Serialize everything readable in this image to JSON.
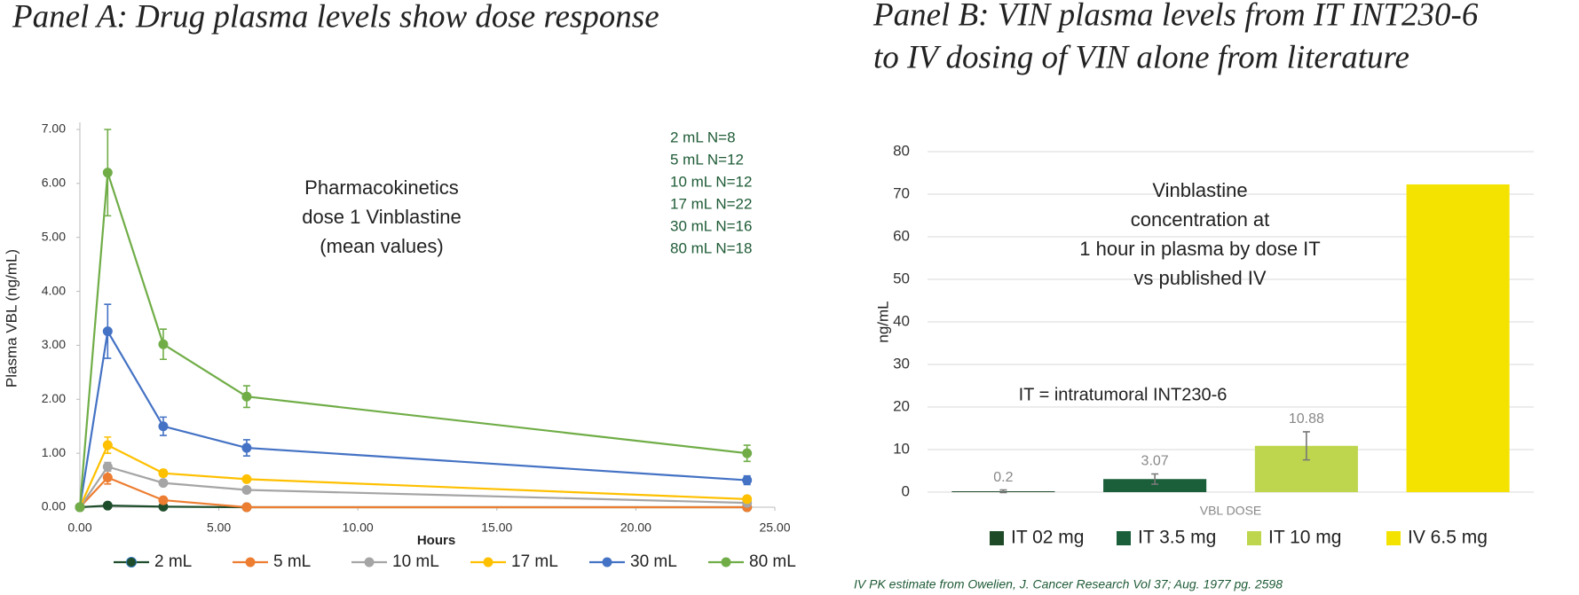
{
  "chart_data": [
    {
      "type": "line",
      "title": "Panel A: Drug plasma levels show dose response",
      "xlabel": "Hours",
      "ylabel": "Plasma VBL (ng/mL)",
      "x": [
        0,
        1,
        3,
        6,
        24
      ],
      "xlim": [
        0,
        25
      ],
      "xticks": [
        {
          "value": 0,
          "label": "0.00"
        },
        {
          "value": 5,
          "label": "5.00"
        },
        {
          "value": 10,
          "label": "10.00"
        },
        {
          "value": 15,
          "label": "15.00"
        },
        {
          "value": 20,
          "label": "20.00"
        },
        {
          "value": 25,
          "label": "25.00"
        }
      ],
      "ylim": [
        0,
        7
      ],
      "yticks": [
        {
          "value": 0,
          "label": "0.00"
        },
        {
          "value": 1,
          "label": "1.00"
        },
        {
          "value": 2,
          "label": "2.00"
        },
        {
          "value": 3,
          "label": "3.00"
        },
        {
          "value": 4,
          "label": "4.00"
        },
        {
          "value": 5,
          "label": "5.00"
        },
        {
          "value": 6,
          "label": "6.00"
        },
        {
          "value": 7,
          "label": "7.00"
        }
      ],
      "series": [
        {
          "name": "2 mL",
          "color": "#1e4d2b",
          "values": [
            0,
            0.03,
            0.01,
            0,
            0
          ],
          "errors": [
            0,
            0.01,
            0,
            0,
            0
          ]
        },
        {
          "name": "5 mL",
          "color": "#ed7d31",
          "values": [
            0,
            0.55,
            0.13,
            0,
            0
          ],
          "errors": [
            0,
            0.12,
            0.03,
            0,
            0
          ]
        },
        {
          "name": "10 mL",
          "color": "#a5a5a5",
          "values": [
            0,
            0.75,
            0.45,
            0.32,
            0.08
          ],
          "errors": [
            0,
            0.08,
            0.04,
            0.03,
            0.02
          ]
        },
        {
          "name": "17 mL",
          "color": "#ffc000",
          "values": [
            0,
            1.15,
            0.63,
            0.52,
            0.15
          ],
          "errors": [
            0,
            0.15,
            0.06,
            0.04,
            0.05
          ]
        },
        {
          "name": "30 mL",
          "color": "#4472c4",
          "values": [
            0,
            3.26,
            1.5,
            1.1,
            0.5
          ],
          "errors": [
            0,
            0.5,
            0.17,
            0.15,
            0.08
          ]
        },
        {
          "name": "80 mL",
          "color": "#70ad47",
          "values": [
            0,
            6.2,
            3.02,
            2.05,
            1.0
          ],
          "errors": [
            0,
            0.8,
            0.28,
            0.2,
            0.15
          ]
        }
      ],
      "annotation": [
        "Pharmacokinetics",
        "dose 1 Vinblastine",
        "(mean values)"
      ],
      "n_labels": [
        "2 mL N=8",
        "5 mL N=12",
        "10 mL N=12",
        "17 mL N=22",
        "30 mL N=16",
        "80 mL N=18"
      ]
    },
    {
      "type": "bar",
      "title": [
        "Panel B:  VIN plasma levels from IT INT230-6",
        "to IV dosing of VIN alone from literature"
      ],
      "xlabel": "VBL DOSE",
      "ylabel": "ng/mL",
      "categories": [
        "IT 02 mg",
        "IT 3.5 mg",
        "IT 10 mg",
        "IV 6.5 mg"
      ],
      "values": [
        0.2,
        3.07,
        10.88,
        72.3
      ],
      "value_labels": [
        "0.2",
        "3.07",
        "10.88",
        null
      ],
      "errors": [
        0.3,
        1.2,
        3.3,
        null
      ],
      "colors": [
        "#1e4a28",
        "#1a5e3a",
        "#bdd64e",
        "#f4e300"
      ],
      "ylim": [
        0,
        80
      ],
      "yticks": [
        0,
        10,
        20,
        30,
        40,
        50,
        60,
        70,
        80
      ],
      "grid": true,
      "annotation": [
        "Vinblastine",
        "concentration at",
        "1 hour in plasma by dose IT",
        "vs published IV"
      ],
      "note": "IT = intratumoral INT230-6",
      "footnote": "IV PK estimate from Owelien, J. Cancer Research Vol 37; Aug. 1977 pg. 2598"
    }
  ]
}
